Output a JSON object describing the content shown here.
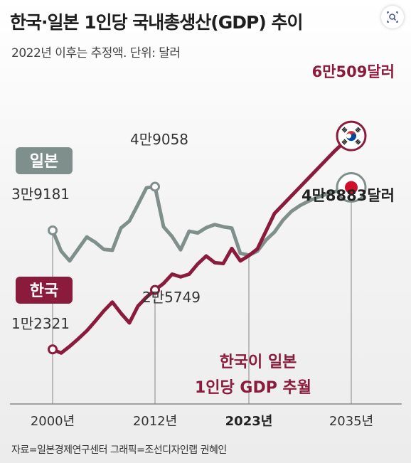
{
  "header": {
    "title": "한국·일본 1인당 국내총생산(GDP) 추이",
    "subtitle": "2022년 이후는 추정액. 단위: 달러"
  },
  "footer": {
    "source": "자료=일본경제연구센터   그래픽=조선디자인랩 권혜인"
  },
  "colors": {
    "korea": "#8b1b3c",
    "japan": "#7f8f8c",
    "text": "#222222",
    "axis": "#9a9a9a"
  },
  "icons": {
    "lens": "visual-search-icon",
    "korea_flag": "korea-flag-icon",
    "japan_flag": "japan-flag-icon"
  },
  "chart_data": {
    "type": "line",
    "title": "한국·일본 1인당 국내총생산(GDP) 추이",
    "subtitle": "2022년 이후는 추정액. 단위: 달러",
    "xlabel": "",
    "ylabel": "",
    "x": [
      2000,
      2001,
      2002,
      2003,
      2004,
      2005,
      2006,
      2007,
      2008,
      2009,
      2010,
      2011,
      2012,
      2013,
      2014,
      2015,
      2016,
      2017,
      2018,
      2019,
      2020,
      2021,
      2022,
      2023,
      2024,
      2025,
      2026,
      2027,
      2028,
      2029,
      2030,
      2031,
      2032,
      2033,
      2034,
      2035
    ],
    "xlim": [
      2000,
      2035
    ],
    "ylim": [
      0,
      70000
    ],
    "xticks": [
      {
        "value": 2000,
        "label": "2000년",
        "bold": false
      },
      {
        "value": 2012,
        "label": "2012년",
        "bold": false
      },
      {
        "value": 2023,
        "label": "2023년",
        "bold": true
      },
      {
        "value": 2035,
        "label": "2035년",
        "bold": false
      }
    ],
    "grid": false,
    "series": [
      {
        "key": "japan",
        "name": "일본",
        "color": "#7f8f8c",
        "values": [
          39181,
          34500,
          32300,
          35000,
          37700,
          36500,
          34900,
          34700,
          39700,
          41300,
          45000,
          48800,
          49058,
          40000,
          37800,
          34800,
          39000,
          38600,
          39800,
          40500,
          40000,
          39700,
          34000,
          33600,
          34500,
          37000,
          38800,
          41500,
          43500,
          44800,
          45800,
          46600,
          47300,
          47900,
          48400,
          48883
        ]
      },
      {
        "key": "korea",
        "name": "한국",
        "color": "#8b1b3c",
        "values": [
          12321,
          11500,
          13000,
          14700,
          16500,
          18700,
          21000,
          23000,
          20500,
          18300,
          22100,
          24100,
          25749,
          27200,
          29300,
          28700,
          29300,
          31600,
          33400,
          31900,
          31700,
          35100,
          32300,
          33500,
          35000,
          39000,
          43000,
          45000,
          47000,
          49000,
          51000,
          53000,
          55000,
          57000,
          58800,
          60509
        ]
      }
    ],
    "labels": {
      "japan_badge": "일본",
      "korea_badge": "한국",
      "japan_start": "3만9181",
      "japan_peak": "4만9058",
      "japan_end": "4만8883달러",
      "korea_start": "1만2321",
      "korea_2012": "2만5749",
      "korea_end": "6만509달러",
      "crossover_line1": "한국이 일본",
      "crossover_line2": "1인당 GDP 추월"
    }
  }
}
